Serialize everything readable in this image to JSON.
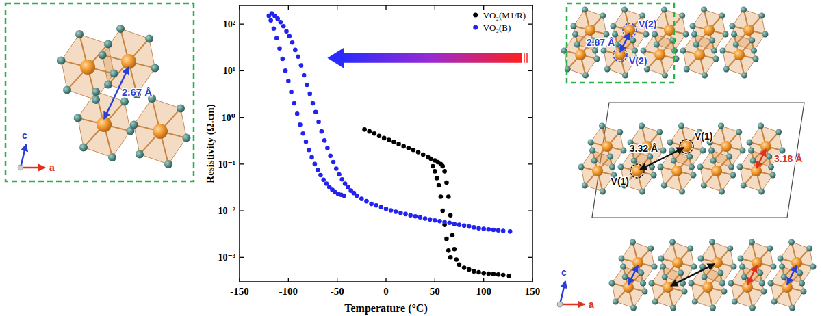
{
  "chart_data": {
    "type": "scatter",
    "x_label": "Temperature (°C)",
    "y_label": "Resistivity (Ω.cm)",
    "log": "y",
    "legend": "upper right",
    "xlim": [
      -150,
      150
    ],
    "xticks": [
      -150,
      -100,
      -50,
      0,
      50,
      100,
      150
    ],
    "ylim": [
      0.0003,
      250
    ],
    "yticks": [
      {
        "value": 0.001,
        "label": "10⁻³"
      },
      {
        "value": 0.01,
        "label": "10⁻²"
      },
      {
        "value": 0.1,
        "label": "10⁻¹"
      },
      {
        "value": 1,
        "label": "10⁰"
      },
      {
        "value": 10,
        "label": "10¹"
      },
      {
        "value": 100,
        "label": "10²"
      }
    ],
    "series": [
      {
        "name": "VO₂(M1/R)",
        "color": "#000000",
        "marker": "circle",
        "x": [
          -22,
          -17,
          -12,
          -7,
          -2,
          3,
          8,
          13,
          18,
          23,
          28,
          33,
          38,
          43,
          46,
          50,
          53,
          56,
          58,
          60,
          62,
          64,
          66,
          68,
          70,
          72,
          48,
          50,
          52,
          54,
          56,
          58,
          60,
          62,
          64,
          66,
          75,
          80,
          85,
          90,
          95,
          100,
          105,
          110,
          115,
          120,
          126
        ],
        "values": [
          0.55,
          0.5,
          0.45,
          0.4,
          0.36,
          0.33,
          0.3,
          0.27,
          0.24,
          0.22,
          0.2,
          0.18,
          0.16,
          0.14,
          0.13,
          0.12,
          0.11,
          0.1,
          0.09,
          0.07,
          0.04,
          0.02,
          0.008,
          0.003,
          0.0015,
          0.0009,
          0.09,
          0.07,
          0.05,
          0.035,
          0.02,
          0.01,
          0.005,
          0.0025,
          0.0014,
          0.001,
          0.0007,
          0.0006,
          0.00055,
          0.0005,
          0.00048,
          0.00046,
          0.00045,
          0.00044,
          0.00043,
          0.00042,
          0.0004
        ]
      },
      {
        "name": "VO₂(B)",
        "color": "#2323f0",
        "marker": "circle",
        "x": [
          -120,
          -117,
          -114,
          -111,
          -108,
          -105,
          -102,
          -99,
          -96,
          -93,
          -90,
          -87,
          -84,
          -81,
          -78,
          -75,
          -72,
          -69,
          -66,
          -63,
          -60,
          -57,
          -54,
          -51,
          -48,
          -45,
          -42,
          -39,
          -36,
          -33,
          -30,
          -25,
          -20,
          -15,
          -10,
          -5,
          0,
          5,
          10,
          15,
          20,
          25,
          30,
          35,
          40,
          45,
          50,
          55,
          60,
          65,
          70,
          75,
          80,
          85,
          90,
          95,
          100,
          105,
          110,
          115,
          120,
          127,
          -118,
          -115,
          -112,
          -109,
          -106,
          -103,
          -100,
          -97,
          -94,
          -91,
          -88,
          -85,
          -82,
          -79,
          -76,
          -73,
          -70,
          -67,
          -64,
          -61,
          -58,
          -55,
          -52,
          -49,
          -46,
          -43
        ],
        "values": [
          150,
          170,
          150,
          130,
          110,
          90,
          70,
          55,
          40,
          28,
          20,
          13,
          8,
          5,
          3.2,
          2,
          1.3,
          0.8,
          0.5,
          0.32,
          0.22,
          0.15,
          0.11,
          0.08,
          0.06,
          0.047,
          0.038,
          0.032,
          0.027,
          0.024,
          0.021,
          0.018,
          0.016,
          0.014,
          0.013,
          0.012,
          0.011,
          0.0102,
          0.0095,
          0.009,
          0.0085,
          0.008,
          0.0076,
          0.0072,
          0.0068,
          0.0065,
          0.0062,
          0.006,
          0.0057,
          0.0055,
          0.0052,
          0.005,
          0.0048,
          0.0046,
          0.0044,
          0.0042,
          0.0041,
          0.004,
          0.0039,
          0.0038,
          0.0037,
          0.0036,
          120,
          80,
          50,
          30,
          18,
          10,
          6,
          3.5,
          2,
          1.2,
          0.7,
          0.45,
          0.3,
          0.2,
          0.14,
          0.1,
          0.075,
          0.058,
          0.046,
          0.038,
          0.032,
          0.028,
          0.025,
          0.023,
          0.022,
          0.021
        ]
      }
    ]
  },
  "left_structure": {
    "distance_label": "2.67 Å",
    "axis_labels": [
      "c",
      "a"
    ]
  },
  "right_structure": {
    "v2_labels": [
      "V(2)",
      "V(2)"
    ],
    "v1_labels": [
      "V(1)",
      "V(1)"
    ],
    "distance_labels": {
      "v2_pair": "2.87 Å",
      "v1_pair": "3.32 Å",
      "chain": "3.18 Å"
    },
    "axis_labels": [
      "c",
      "a"
    ]
  }
}
